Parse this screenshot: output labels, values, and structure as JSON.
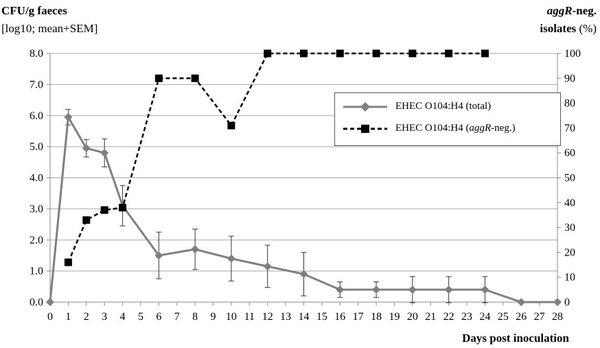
{
  "chart_data": {
    "type": "line",
    "title": "",
    "yleft_label": {
      "line1": "CFU/g faeces",
      "line2": "[log10; mean+SEM]"
    },
    "yright_label": {
      "line1_italic": "aggR",
      "line1_rest": "-neg.",
      "line2_bold": "isolates",
      "line2_rest": " (%)"
    },
    "xlabel": "Days post inoculation",
    "x_ticks": [
      0,
      1,
      2,
      3,
      4,
      5,
      6,
      7,
      8,
      9,
      10,
      11,
      12,
      13,
      14,
      15,
      16,
      17,
      18,
      19,
      20,
      21,
      22,
      23,
      24,
      25,
      26,
      27,
      28
    ],
    "yleft_ticks": [
      "0.0",
      "1.0",
      "2.0",
      "3.0",
      "4.0",
      "5.0",
      "6.0",
      "7.0",
      "8.0"
    ],
    "yright_ticks": [
      0,
      10,
      20,
      30,
      40,
      50,
      60,
      70,
      80,
      90,
      100
    ],
    "ylim_left": [
      0,
      8
    ],
    "ylim_right": [
      0,
      100
    ],
    "grid": true,
    "legend_position": "top-right",
    "series": [
      {
        "name": "EHEC O104:H4 (total)",
        "axis": "left",
        "color": "#7f7f7f",
        "style": "solid",
        "marker": "diamond",
        "x": [
          0,
          1,
          2,
          3,
          4,
          6,
          8,
          10,
          12,
          14,
          16,
          18,
          20,
          22,
          24,
          26,
          28
        ],
        "y": [
          0.0,
          5.95,
          4.95,
          4.8,
          3.1,
          1.5,
          1.7,
          1.4,
          1.15,
          0.9,
          0.4,
          0.4,
          0.4,
          0.4,
          0.4,
          0.0,
          0.0
        ],
        "sem": [
          0,
          0.25,
          0.28,
          0.45,
          0.65,
          0.75,
          0.65,
          0.72,
          0.68,
          0.7,
          0.25,
          0.25,
          0.42,
          0.42,
          0.42,
          0,
          0
        ]
      },
      {
        "name_prefix": "EHEC O104:H4 (",
        "name_italic": "aggR",
        "name_suffix": "-neg.)",
        "axis": "right",
        "color": "#000000",
        "style": "dashed",
        "marker": "square",
        "x": [
          1,
          2,
          3,
          4,
          6,
          8,
          10,
          12,
          14,
          16,
          18,
          20,
          22,
          24
        ],
        "y": [
          16,
          33,
          37,
          38,
          90,
          90,
          71,
          100,
          100,
          100,
          100,
          100,
          100,
          100
        ]
      }
    ]
  }
}
